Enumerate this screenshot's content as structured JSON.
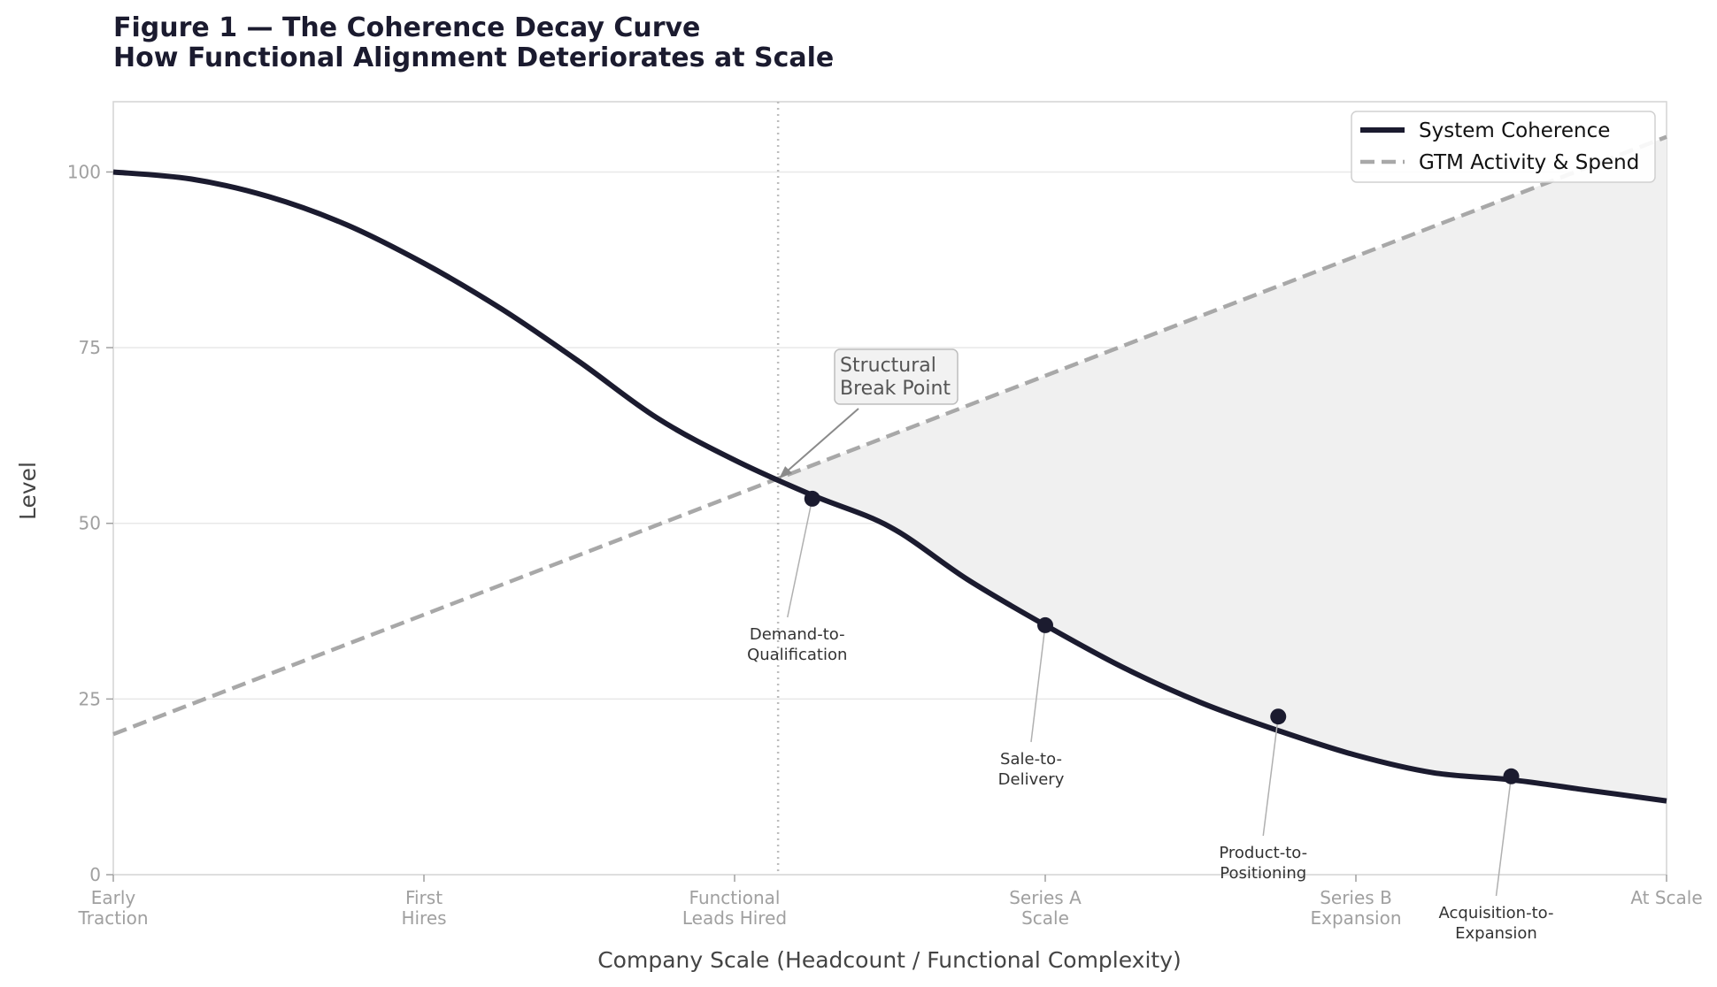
{
  "chart_data": {
    "type": "line",
    "title": "Figure 1 — The Coherence Decay Curve",
    "subtitle": "How Functional Alignment Deteriorates at Scale",
    "xlabel": "Company Scale  (Headcount / Functional Complexity)",
    "ylabel": "Level",
    "xlim": [
      0,
      5
    ],
    "ylim": [
      0,
      110
    ],
    "yticks": [
      0,
      25,
      50,
      75,
      100
    ],
    "categories": [
      "Early\nTraction",
      "First\nHires",
      "Functional\nLeads Hired",
      "Series A\nScale",
      "Series B\nExpansion",
      "At Scale"
    ],
    "grid": "horizontal",
    "legend_position": "top-right",
    "series": [
      {
        "name": "System Coherence",
        "style": "solid",
        "color": "#1b1b2f",
        "x": [
          0,
          0.25,
          0.5,
          0.75,
          1.0,
          1.25,
          1.5,
          1.75,
          2.0,
          2.25,
          2.5,
          2.75,
          3.0,
          3.25,
          3.5,
          3.75,
          4.0,
          4.25,
          4.5,
          4.75,
          5.0
        ],
        "values": [
          100,
          99,
          96.5,
          92.5,
          87,
          80.5,
          73,
          65,
          59,
          54,
          49.5,
          42,
          35.5,
          29.5,
          24.5,
          20.5,
          17,
          14.5,
          13.5,
          12,
          10.5
        ]
      },
      {
        "name": "GTM Activity & Spend",
        "style": "dashed",
        "color": "#a8a8a8",
        "x": [
          0,
          5
        ],
        "values": [
          20,
          105
        ]
      }
    ],
    "vertical_marker_x": 2.14,
    "shaded_region": "between GTM Activity & Spend and System Coherence after the crossing",
    "annotations": [
      {
        "text": "Structural\nBreak Point",
        "x": 2.14,
        "y": 56.5,
        "boxed": true
      },
      {
        "text": "Demand-to-\nQualification",
        "x": 2.25,
        "y": 53.5
      },
      {
        "text": "Sale-to-\nDelivery",
        "x": 3.0,
        "y": 35.5
      },
      {
        "text": "Product-to-\nPositioning",
        "x": 3.75,
        "y": 22.5
      },
      {
        "text": "Acquisition-to-\nExpansion",
        "x": 4.5,
        "y": 14
      }
    ]
  }
}
